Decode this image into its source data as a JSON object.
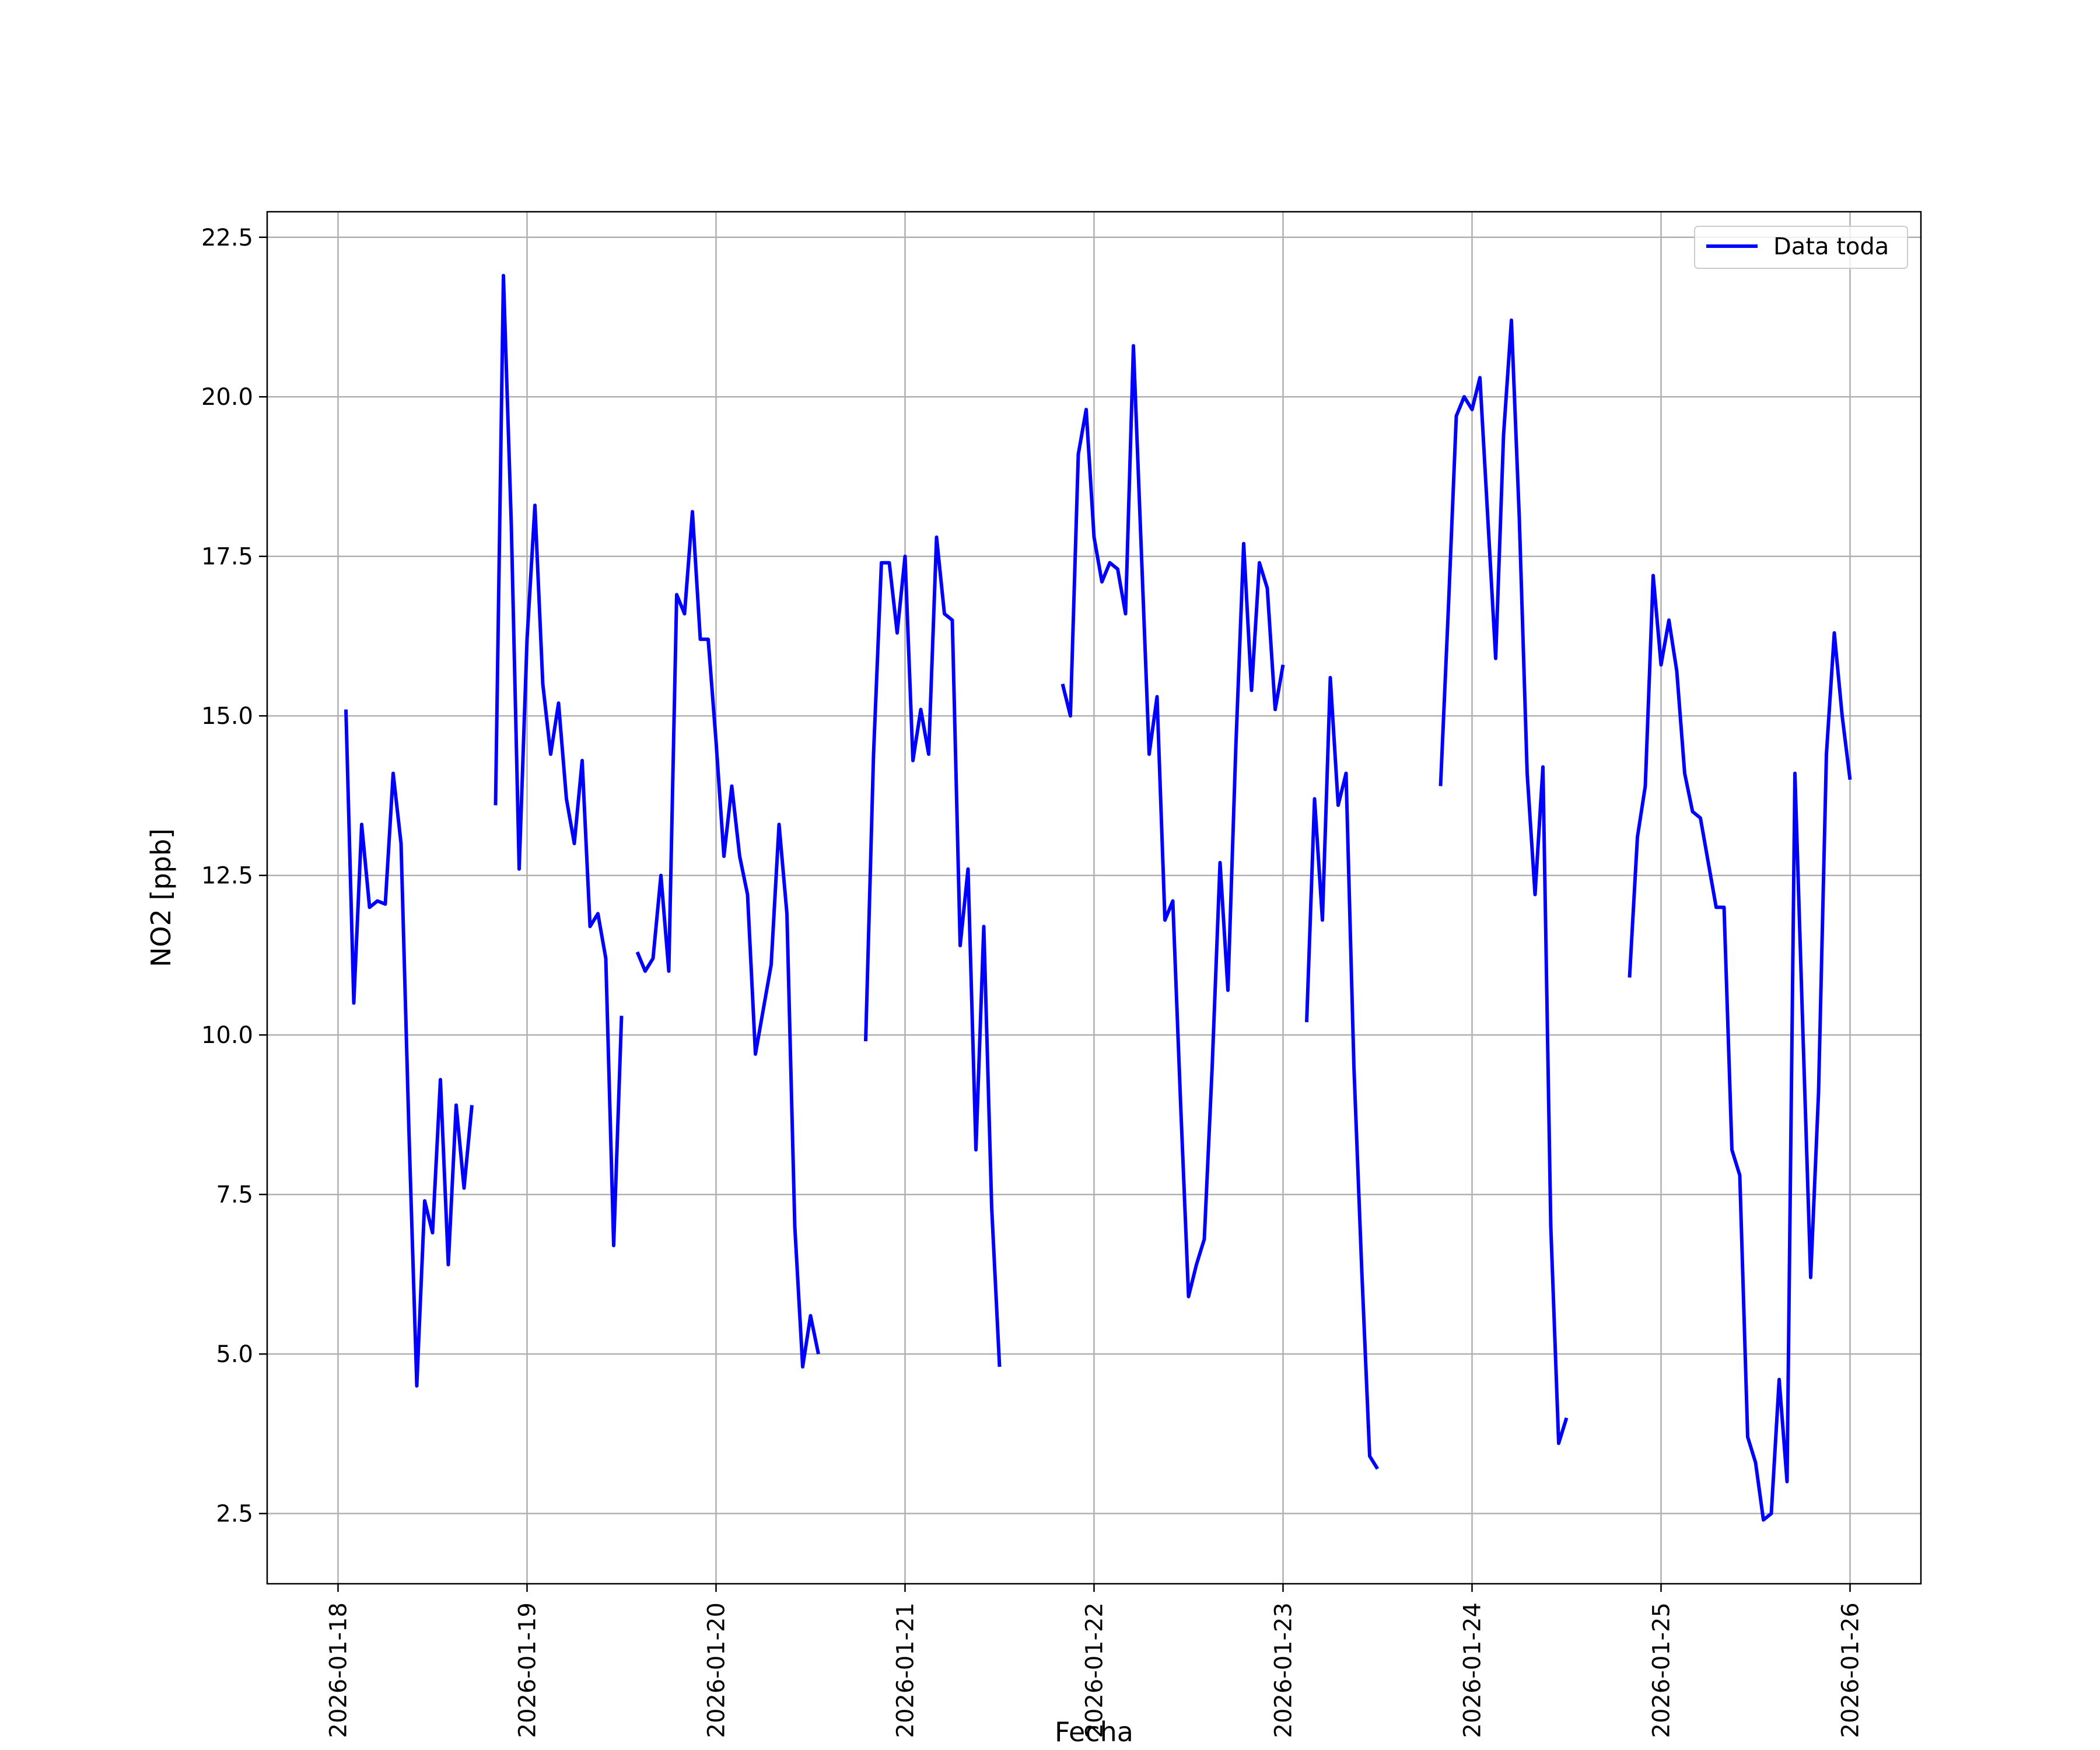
{
  "chart_data": {
    "type": "line",
    "xlabel": "Fecha",
    "ylabel": "NO2 [ppb]",
    "x_unit": "date",
    "xlim": [
      "2026-01-17T15:00",
      "2026-01-26T09:00"
    ],
    "ylim": [
      1.4,
      22.9
    ],
    "grid": true,
    "legend_position": "upper right",
    "x_ticks": [
      "2026-01-18",
      "2026-01-19",
      "2026-01-20",
      "2026-01-21",
      "2026-01-22",
      "2026-01-23",
      "2026-01-24",
      "2026-01-25",
      "2026-01-26"
    ],
    "y_ticks": [
      2.5,
      5.0,
      7.5,
      10.0,
      12.5,
      15.0,
      17.5,
      20.0,
      22.5
    ],
    "y_tick_labels": [
      "2.5",
      "5.0",
      "7.5",
      "10.0",
      "12.5",
      "15.0",
      "17.5",
      "20.0",
      "22.5"
    ],
    "series": [
      {
        "name": "Data toda",
        "color": "#0000ff",
        "segments": [
          [
            [
              "2026-01-18T01:00",
              15.1
            ],
            [
              "2026-01-18T02:00",
              10.5
            ],
            [
              "2026-01-18T03:00",
              13.3
            ],
            [
              "2026-01-18T04:00",
              12.0
            ],
            [
              "2026-01-18T05:00",
              12.1
            ],
            [
              "2026-01-18T06:00",
              12.05
            ],
            [
              "2026-01-18T07:00",
              14.1
            ],
            [
              "2026-01-18T08:00",
              13.0
            ],
            [
              "2026-01-18T09:00",
              8.5
            ],
            [
              "2026-01-18T10:00",
              4.5
            ],
            [
              "2026-01-18T11:00",
              7.4
            ],
            [
              "2026-01-18T12:00",
              6.9
            ],
            [
              "2026-01-18T13:00",
              9.3
            ],
            [
              "2026-01-18T14:00",
              6.4
            ],
            [
              "2026-01-18T15:00",
              8.9
            ],
            [
              "2026-01-18T16:00",
              7.6
            ],
            [
              "2026-01-18T17:00",
              8.9
            ]
          ],
          [
            [
              "2026-01-18T20:00",
              13.6
            ],
            [
              "2026-01-18T21:00",
              21.9
            ],
            [
              "2026-01-18T22:00",
              18.0
            ],
            [
              "2026-01-18T23:00",
              12.6
            ],
            [
              "2026-01-19T00:00",
              16.2
            ],
            [
              "2026-01-19T01:00",
              18.3
            ],
            [
              "2026-01-19T02:00",
              15.5
            ],
            [
              "2026-01-19T03:00",
              14.4
            ],
            [
              "2026-01-19T04:00",
              15.2
            ],
            [
              "2026-01-19T05:00",
              13.7
            ],
            [
              "2026-01-19T06:00",
              13.0
            ],
            [
              "2026-01-19T07:00",
              14.3
            ],
            [
              "2026-01-19T08:00",
              11.7
            ],
            [
              "2026-01-19T09:00",
              11.9
            ],
            [
              "2026-01-19T10:00",
              11.2
            ],
            [
              "2026-01-19T11:00",
              6.7
            ],
            [
              "2026-01-19T12:00",
              10.3
            ]
          ],
          [
            [
              "2026-01-19T14:00",
              11.3
            ],
            [
              "2026-01-19T15:00",
              11.0
            ],
            [
              "2026-01-19T16:00",
              11.2
            ],
            [
              "2026-01-19T17:00",
              12.5
            ],
            [
              "2026-01-19T18:00",
              11.0
            ],
            [
              "2026-01-19T19:00",
              16.9
            ],
            [
              "2026-01-19T20:00",
              16.6
            ],
            [
              "2026-01-19T21:00",
              18.2
            ],
            [
              "2026-01-19T22:00",
              16.2
            ],
            [
              "2026-01-19T23:00",
              16.2
            ],
            [
              "2026-01-20T00:00",
              14.6
            ],
            [
              "2026-01-20T01:00",
              12.8
            ],
            [
              "2026-01-20T02:00",
              13.9
            ],
            [
              "2026-01-20T03:00",
              12.8
            ],
            [
              "2026-01-20T04:00",
              12.2
            ],
            [
              "2026-01-20T05:00",
              9.7
            ],
            [
              "2026-01-20T06:00",
              10.4
            ],
            [
              "2026-01-20T07:00",
              11.1
            ],
            [
              "2026-01-20T08:00",
              13.3
            ],
            [
              "2026-01-20T09:00",
              11.9
            ],
            [
              "2026-01-20T10:00",
              7.0
            ],
            [
              "2026-01-20T11:00",
              4.8
            ],
            [
              "2026-01-20T12:00",
              5.6
            ],
            [
              "2026-01-20T13:00",
              5.0
            ]
          ],
          [
            [
              "2026-01-20T19:00",
              9.9
            ],
            [
              "2026-01-20T20:00",
              14.4
            ],
            [
              "2026-01-20T21:00",
              17.4
            ],
            [
              "2026-01-20T22:00",
              17.4
            ],
            [
              "2026-01-20T23:00",
              16.3
            ],
            [
              "2026-01-21T00:00",
              17.5
            ],
            [
              "2026-01-21T01:00",
              14.3
            ],
            [
              "2026-01-21T02:00",
              15.1
            ],
            [
              "2026-01-21T03:00",
              14.4
            ],
            [
              "2026-01-21T04:00",
              17.8
            ],
            [
              "2026-01-21T05:00",
              16.6
            ],
            [
              "2026-01-21T06:00",
              16.5
            ],
            [
              "2026-01-21T07:00",
              11.4
            ],
            [
              "2026-01-21T08:00",
              12.6
            ],
            [
              "2026-01-21T09:00",
              8.2
            ],
            [
              "2026-01-21T10:00",
              11.7
            ],
            [
              "2026-01-21T11:00",
              7.3
            ],
            [
              "2026-01-21T12:00",
              4.8
            ]
          ],
          [
            [
              "2026-01-21T20:00",
              15.5
            ],
            [
              "2026-01-21T21:00",
              15.0
            ],
            [
              "2026-01-21T22:00",
              19.1
            ],
            [
              "2026-01-21T23:00",
              19.8
            ],
            [
              "2026-01-22T00:00",
              17.8
            ],
            [
              "2026-01-22T01:00",
              17.1
            ],
            [
              "2026-01-22T02:00",
              17.4
            ],
            [
              "2026-01-22T03:00",
              17.3
            ],
            [
              "2026-01-22T04:00",
              16.6
            ],
            [
              "2026-01-22T05:00",
              20.8
            ],
            [
              "2026-01-22T06:00",
              17.6
            ],
            [
              "2026-01-22T07:00",
              14.4
            ],
            [
              "2026-01-22T08:00",
              15.3
            ],
            [
              "2026-01-22T09:00",
              11.8
            ],
            [
              "2026-01-22T10:00",
              12.1
            ],
            [
              "2026-01-22T11:00",
              8.9
            ],
            [
              "2026-01-22T12:00",
              5.9
            ],
            [
              "2026-01-22T13:00",
              6.4
            ],
            [
              "2026-01-22T14:00",
              6.8
            ],
            [
              "2026-01-22T15:00",
              9.5
            ],
            [
              "2026-01-22T16:00",
              12.7
            ],
            [
              "2026-01-22T17:00",
              10.7
            ],
            [
              "2026-01-22T18:00",
              14.5
            ],
            [
              "2026-01-22T19:00",
              17.7
            ],
            [
              "2026-01-22T20:00",
              15.4
            ],
            [
              "2026-01-22T21:00",
              17.4
            ],
            [
              "2026-01-22T22:00",
              17.0
            ],
            [
              "2026-01-22T23:00",
              15.1
            ],
            [
              "2026-01-23T00:00",
              15.8
            ]
          ],
          [
            [
              "2026-01-23T03:00",
              10.2
            ],
            [
              "2026-01-23T04:00",
              13.7
            ],
            [
              "2026-01-23T05:00",
              11.8
            ],
            [
              "2026-01-23T06:00",
              15.6
            ],
            [
              "2026-01-23T07:00",
              13.6
            ],
            [
              "2026-01-23T08:00",
              14.1
            ],
            [
              "2026-01-23T09:00",
              9.5
            ],
            [
              "2026-01-23T10:00",
              6.3
            ],
            [
              "2026-01-23T11:00",
              3.4
            ],
            [
              "2026-01-23T12:00",
              3.2
            ]
          ],
          [
            [
              "2026-01-23T20:00",
              13.9
            ],
            [
              "2026-01-23T21:00",
              16.7
            ],
            [
              "2026-01-23T22:00",
              19.7
            ],
            [
              "2026-01-23T23:00",
              20.0
            ],
            [
              "2026-01-24T00:00",
              19.8
            ],
            [
              "2026-01-24T01:00",
              20.3
            ],
            [
              "2026-01-24T02:00",
              18.1
            ],
            [
              "2026-01-24T03:00",
              15.9
            ],
            [
              "2026-01-24T04:00",
              19.4
            ],
            [
              "2026-01-24T05:00",
              21.2
            ],
            [
              "2026-01-24T06:00",
              18.1
            ],
            [
              "2026-01-24T07:00",
              14.1
            ],
            [
              "2026-01-24T08:00",
              12.2
            ],
            [
              "2026-01-24T09:00",
              14.2
            ],
            [
              "2026-01-24T10:00",
              7.0
            ],
            [
              "2026-01-24T11:00",
              3.6
            ],
            [
              "2026-01-24T12:00",
              4.0
            ]
          ],
          [
            [
              "2026-01-24T20:00",
              10.9
            ],
            [
              "2026-01-24T21:00",
              13.1
            ],
            [
              "2026-01-24T22:00",
              13.9
            ],
            [
              "2026-01-24T23:00",
              17.2
            ],
            [
              "2026-01-25T00:00",
              15.8
            ],
            [
              "2026-01-25T01:00",
              16.5
            ],
            [
              "2026-01-25T02:00",
              15.7
            ],
            [
              "2026-01-25T03:00",
              14.1
            ],
            [
              "2026-01-25T04:00",
              13.5
            ],
            [
              "2026-01-25T05:00",
              13.4
            ],
            [
              "2026-01-25T06:00",
              12.7
            ],
            [
              "2026-01-25T07:00",
              12.0
            ],
            [
              "2026-01-25T08:00",
              12.0
            ],
            [
              "2026-01-25T09:00",
              8.2
            ],
            [
              "2026-01-25T10:00",
              7.8
            ],
            [
              "2026-01-25T11:00",
              3.7
            ],
            [
              "2026-01-25T12:00",
              3.3
            ],
            [
              "2026-01-25T13:00",
              2.4
            ],
            [
              "2026-01-25T14:00",
              2.5
            ],
            [
              "2026-01-25T15:00",
              4.6
            ],
            [
              "2026-01-25T16:00",
              3.0
            ],
            [
              "2026-01-25T17:00",
              14.1
            ],
            [
              "2026-01-25T18:00",
              10.1
            ],
            [
              "2026-01-25T19:00",
              6.2
            ],
            [
              "2026-01-25T20:00",
              9.1
            ],
            [
              "2026-01-25T21:00",
              14.4
            ],
            [
              "2026-01-25T22:00",
              16.3
            ],
            [
              "2026-01-25T23:00",
              15.0
            ],
            [
              "2026-01-26T00:00",
              14.0
            ]
          ]
        ]
      }
    ]
  }
}
